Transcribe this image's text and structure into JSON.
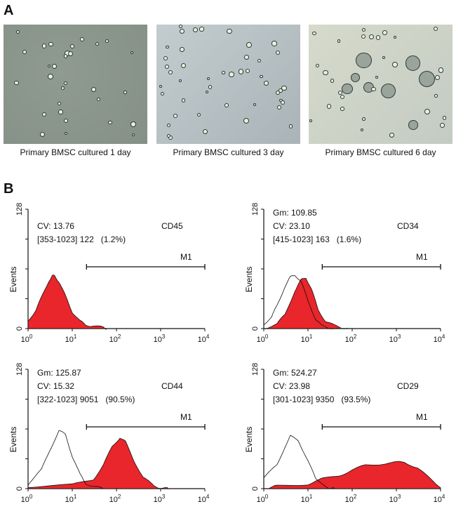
{
  "panel_a": {
    "label": "A",
    "images": [
      {
        "caption": "Primary BMSC cultured 1 day",
        "tone": "#8f9a90"
      },
      {
        "caption": "Primary BMSC cultured 3 day",
        "tone": "#b9c3c6"
      },
      {
        "caption": "Primary BMSC cultured 6 day",
        "tone": "#cdd3c6"
      }
    ]
  },
  "panel_b": {
    "label": "B"
  },
  "chart_data": [
    {
      "type": "area",
      "marker": "CD45",
      "ylabel": "Events",
      "xscale": "log",
      "xlim": [
        1,
        10000
      ],
      "ylim": [
        0,
        128
      ],
      "x_ticks": [
        {
          "base": "10",
          "exp": "0"
        },
        {
          "base": "10",
          "exp": "1"
        },
        {
          "base": "10",
          "exp": "2"
        },
        {
          "base": "10",
          "exp": "3"
        },
        {
          "base": "10",
          "exp": "4"
        }
      ],
      "y_ticks": [
        "0",
        "128"
      ],
      "stats": [
        "CV: 13.76",
        "[353-1023] 122   (1.2%)"
      ],
      "gate": {
        "label": "M1",
        "range": [
          21,
          10000
        ]
      },
      "fill_color": "#e8262b",
      "sample": [
        [
          1,
          8
        ],
        [
          1.5,
          20
        ],
        [
          2,
          33
        ],
        [
          3,
          52
        ],
        [
          3.5,
          56
        ],
        [
          4,
          57
        ],
        [
          5,
          50
        ],
        [
          7,
          35
        ],
        [
          10,
          18
        ],
        [
          15,
          8
        ],
        [
          20,
          4
        ],
        [
          30,
          3
        ],
        [
          50,
          1
        ],
        [
          60,
          0
        ]
      ],
      "control": []
    },
    {
      "type": "area",
      "marker": "CD34",
      "ylabel": "Events",
      "xscale": "log",
      "xlim": [
        1,
        10000
      ],
      "ylim": [
        0,
        128
      ],
      "x_ticks": [
        {
          "base": "10",
          "exp": "0"
        },
        {
          "base": "10",
          "exp": "1"
        },
        {
          "base": "10",
          "exp": "2"
        },
        {
          "base": "10",
          "exp": "3"
        },
        {
          "base": "10",
          "exp": "4"
        }
      ],
      "y_ticks": [
        "0",
        "128"
      ],
      "stats": [
        "Gm: 109.85",
        "CV: 23.10",
        "[415-1023] 163   (1.6%)"
      ],
      "gate": {
        "label": "M1",
        "range": [
          21,
          10000
        ]
      },
      "fill_color": "#e8262b",
      "sample": [
        [
          1,
          0
        ],
        [
          2,
          5
        ],
        [
          3,
          15
        ],
        [
          5,
          40
        ],
        [
          7,
          52
        ],
        [
          9,
          55
        ],
        [
          12,
          42
        ],
        [
          17,
          20
        ],
        [
          25,
          8
        ],
        [
          40,
          3
        ],
        [
          60,
          1
        ],
        [
          80,
          0
        ]
      ],
      "control": [
        [
          1,
          5
        ],
        [
          1.5,
          12
        ],
        [
          2,
          25
        ],
        [
          3,
          45
        ],
        [
          4,
          55
        ],
        [
          5,
          58
        ],
        [
          7,
          50
        ],
        [
          10,
          30
        ],
        [
          15,
          10
        ],
        [
          20,
          3
        ],
        [
          30,
          1
        ],
        [
          50,
          0
        ]
      ]
    },
    {
      "type": "area",
      "marker": "CD44",
      "ylabel": "Events",
      "xscale": "log",
      "xlim": [
        1,
        10000
      ],
      "ylim": [
        0,
        128
      ],
      "x_ticks": [
        {
          "base": "10",
          "exp": "0"
        },
        {
          "base": "10",
          "exp": "1"
        },
        {
          "base": "10",
          "exp": "2"
        },
        {
          "base": "10",
          "exp": "3"
        },
        {
          "base": "10",
          "exp": "4"
        }
      ],
      "y_ticks": [
        "0",
        "128"
      ],
      "stats": [
        "Gm: 125.87",
        "CV: 15.32",
        "[322-1023] 9051   (90.5%)"
      ],
      "gate": {
        "label": "M1",
        "range": [
          21,
          10000
        ]
      },
      "fill_color": "#e8262b",
      "sample": [
        [
          1,
          2
        ],
        [
          10,
          4
        ],
        [
          30,
          10
        ],
        [
          50,
          25
        ],
        [
          80,
          45
        ],
        [
          120,
          55
        ],
        [
          160,
          50
        ],
        [
          250,
          30
        ],
        [
          400,
          12
        ],
        [
          700,
          3
        ],
        [
          1000,
          1
        ],
        [
          1500,
          0
        ]
      ],
      "control": [
        [
          1,
          5
        ],
        [
          2,
          20
        ],
        [
          3,
          40
        ],
        [
          5,
          62
        ],
        [
          7,
          58
        ],
        [
          10,
          35
        ],
        [
          15,
          15
        ],
        [
          20,
          6
        ],
        [
          30,
          2
        ],
        [
          50,
          0
        ]
      ]
    },
    {
      "type": "area",
      "marker": "CD29",
      "ylabel": "Events",
      "xscale": "log",
      "xlim": [
        1,
        10000
      ],
      "ylim": [
        0,
        128
      ],
      "x_ticks": [
        {
          "base": "10",
          "exp": "0"
        },
        {
          "base": "10",
          "exp": "1"
        },
        {
          "base": "10",
          "exp": "2"
        },
        {
          "base": "10",
          "exp": "3"
        },
        {
          "base": "10",
          "exp": "4"
        }
      ],
      "y_ticks": [
        "0",
        "128"
      ],
      "stats": [
        "Gm: 524.27",
        "CV: 23.98",
        "[301-1023] 9350   (93.5%)"
      ],
      "gate": {
        "label": "M1",
        "range": [
          21,
          10000
        ]
      },
      "fill_color": "#e8262b",
      "sample": [
        [
          1.3,
          0
        ],
        [
          2,
          3
        ],
        [
          10,
          5
        ],
        [
          20,
          10
        ],
        [
          50,
          14
        ],
        [
          100,
          20
        ],
        [
          200,
          25
        ],
        [
          500,
          27
        ],
        [
          1000,
          28
        ],
        [
          1500,
          29
        ],
        [
          3000,
          22
        ],
        [
          6000,
          10
        ],
        [
          10000,
          2
        ]
      ],
      "control": [
        [
          1,
          12
        ],
        [
          2,
          25
        ],
        [
          3,
          45
        ],
        [
          4,
          56
        ],
        [
          6,
          52
        ],
        [
          10,
          30
        ],
        [
          15,
          10
        ],
        [
          30,
          1
        ],
        [
          40,
          0
        ]
      ]
    }
  ]
}
